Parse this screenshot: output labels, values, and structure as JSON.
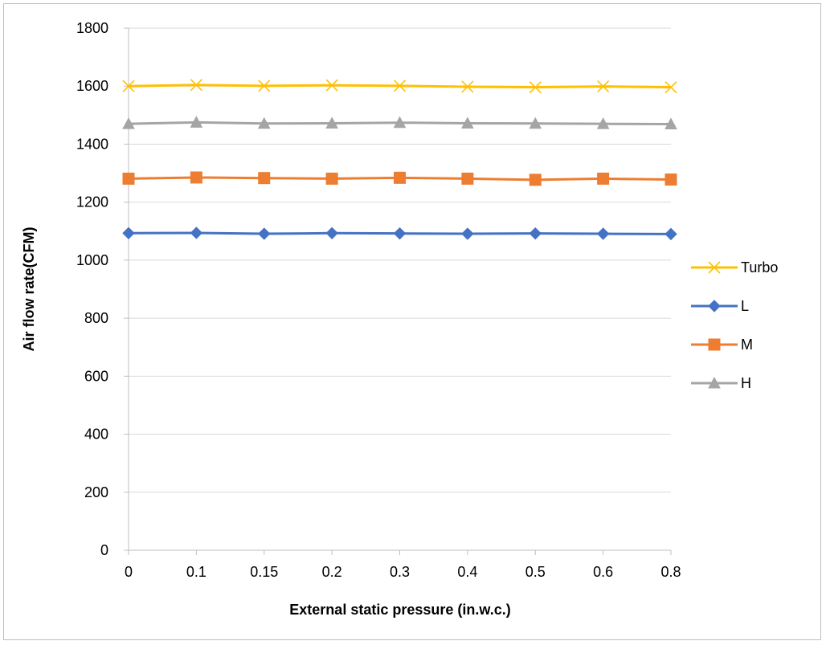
{
  "chart_data": {
    "type": "line",
    "categories": [
      "0",
      "0.1",
      "0.15",
      "0.2",
      "0.3",
      "0.4",
      "0.5",
      "0.6",
      "0.8"
    ],
    "xlabel": "External static pressure (in.w.c.)",
    "ylabel": "Air flow rate(CFM)",
    "ylim": [
      0,
      1800
    ],
    "yticks": [
      "0",
      "200",
      "400",
      "600",
      "800",
      "1000",
      "1200",
      "1400",
      "1600",
      "1800"
    ],
    "grid": "horizontal",
    "legend_position": "right",
    "series": [
      {
        "name": "Turbo",
        "color": "#FFC000",
        "marker": "x",
        "values": [
          1600,
          1604,
          1601,
          1603,
          1601,
          1598,
          1596,
          1599,
          1596
        ]
      },
      {
        "name": "L",
        "color": "#4472C4",
        "marker": "diamond",
        "values": [
          1093,
          1094,
          1091,
          1093,
          1092,
          1091,
          1092,
          1091,
          1090
        ]
      },
      {
        "name": "M",
        "color": "#ED7D31",
        "marker": "square",
        "values": [
          1281,
          1285,
          1283,
          1281,
          1284,
          1281,
          1277,
          1281,
          1278
        ]
      },
      {
        "name": "H",
        "color": "#A5A5A5",
        "marker": "triangle",
        "values": [
          1470,
          1475,
          1471,
          1472,
          1474,
          1472,
          1471,
          1470,
          1469
        ]
      }
    ]
  }
}
